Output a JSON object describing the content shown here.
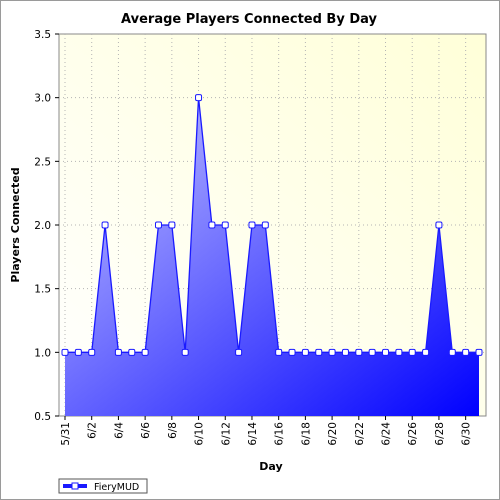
{
  "chart_data": {
    "type": "area",
    "title": "Average Players Connected By Day",
    "xlabel": "Day",
    "ylabel": "Players Connected",
    "ylim": [
      0.5,
      3.5
    ],
    "yticks": [
      "0.5",
      "1.0",
      "1.5",
      "2.0",
      "2.5",
      "3.0",
      "3.5"
    ],
    "x": [
      "5/31",
      "6/1",
      "6/2",
      "6/3",
      "6/4",
      "6/5",
      "6/6",
      "6/7",
      "6/8",
      "6/9",
      "6/10",
      "6/11",
      "6/12",
      "6/13",
      "6/14",
      "6/15",
      "6/16",
      "6/17",
      "6/18",
      "6/19",
      "6/20",
      "6/21",
      "6/22",
      "6/23",
      "6/24",
      "6/25",
      "6/26",
      "6/27",
      "6/28",
      "6/29",
      "6/30",
      "7/1"
    ],
    "xtick_labels": [
      "5/31",
      "6/2",
      "6/4",
      "6/6",
      "6/8",
      "6/10",
      "6/12",
      "6/14",
      "6/16",
      "6/18",
      "6/20",
      "6/22",
      "6/24",
      "6/26",
      "6/28",
      "6/30"
    ],
    "series": [
      {
        "name": "FieryMUD",
        "values": [
          1,
          1,
          1,
          2,
          1,
          1,
          1,
          2,
          2,
          1,
          3,
          2,
          2,
          1,
          2,
          2,
          1,
          1,
          1,
          1,
          1,
          1,
          1,
          1,
          1,
          1,
          1,
          1,
          2,
          1,
          1,
          1
        ]
      }
    ],
    "grid": true,
    "legend": "bottom-left",
    "colors": {
      "line": "#1a1aff",
      "fill_light": "#c8c8ff",
      "fill_dark": "#0000ff",
      "plot_bg_light": "#ffffd8",
      "plot_bg_white": "#ffffff",
      "grid": "#b4b4b4"
    }
  }
}
